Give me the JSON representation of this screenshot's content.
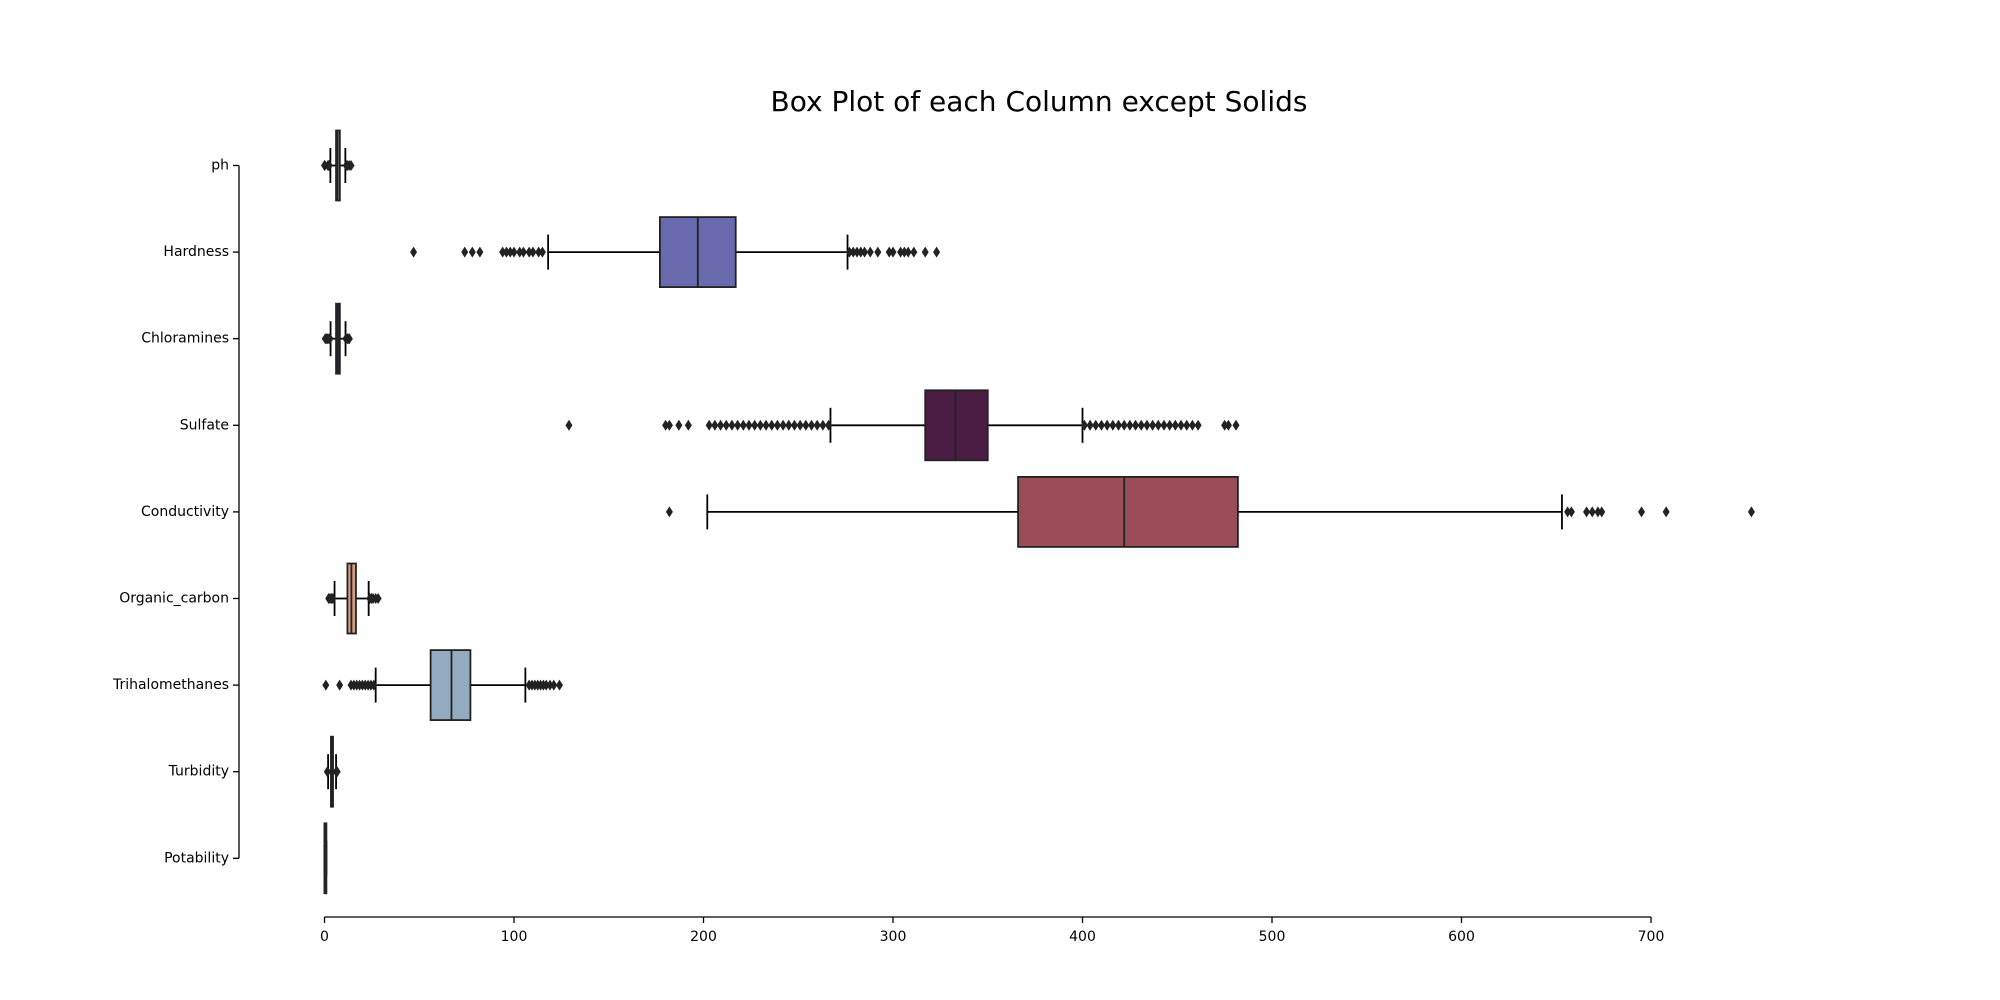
{
  "chart_data": {
    "type": "box",
    "title": "Box Plot of each Column except Solids",
    "xlim": [
      0,
      700
    ],
    "xticks": [
      0,
      100,
      200,
      300,
      400,
      500,
      600,
      700
    ],
    "categories": [
      "ph",
      "Hardness",
      "Chloramines",
      "Sulfate",
      "Conductivity",
      "Organic_carbon",
      "Trihalomethanes",
      "Turbidity",
      "Potability"
    ],
    "boxes": [
      {
        "whisker_low": 3.1,
        "q1": 6.1,
        "median": 7.0,
        "q3": 8.1,
        "whisker_high": 11.0,
        "color": "#d3d5de",
        "outliers": [
          0,
          0.2,
          1.8,
          2.0,
          2.5,
          11.5,
          12,
          13,
          14
        ]
      },
      {
        "whisker_low": 118,
        "q1": 177,
        "median": 197,
        "q3": 217,
        "whisker_high": 276,
        "color": "#6a6baf",
        "outliers": [
          47,
          74,
          78,
          82,
          94,
          96,
          98,
          100,
          103,
          105,
          108,
          110,
          113,
          115,
          277,
          279,
          281,
          283,
          285,
          288,
          292,
          298,
          300,
          304,
          306,
          308,
          311,
          317,
          323
        ]
      },
      {
        "whisker_low": 3.2,
        "q1": 6.1,
        "median": 7.1,
        "q3": 8.1,
        "whisker_high": 11.1,
        "color": "#5c3a8a",
        "outliers": [
          0.4,
          1.0,
          1.7,
          2.4,
          2.9,
          11.3,
          12,
          12.5,
          13.1
        ]
      },
      {
        "whisker_low": 267,
        "q1": 317,
        "median": 333,
        "q3": 350,
        "whisker_high": 400,
        "color": "#4b1c44",
        "outliers": [
          129,
          180,
          182,
          187,
          192,
          203,
          206,
          209,
          212,
          215,
          218,
          221,
          224,
          227,
          230,
          233,
          236,
          239,
          242,
          245,
          248,
          251,
          254,
          257,
          260,
          263,
          266,
          401,
          404,
          407,
          410,
          413,
          416,
          419,
          422,
          425,
          428,
          431,
          434,
          437,
          440,
          443,
          446,
          449,
          452,
          455,
          458,
          461,
          475,
          477,
          481
        ]
      },
      {
        "whisker_low": 202,
        "q1": 366,
        "median": 422,
        "q3": 482,
        "whisker_high": 653,
        "color": "#9b4d57",
        "outliers": [
          182,
          656,
          658,
          666,
          669,
          672,
          674,
          695,
          708,
          753
        ]
      },
      {
        "whisker_low": 5.3,
        "q1": 12.1,
        "median": 14.2,
        "q3": 16.6,
        "whisker_high": 23.3,
        "color": "#d39e84",
        "outliers": [
          2.2,
          2.9,
          3.7,
          4.4,
          23.9,
          24.8,
          25.6,
          27.0,
          28.3
        ]
      },
      {
        "whisker_low": 27,
        "q1": 56,
        "median": 67,
        "q3": 77,
        "whisker_high": 106,
        "color": "#93abc1",
        "outliers": [
          0.7,
          8,
          14,
          15.5,
          17,
          18.5,
          20,
          21.5,
          23,
          24.5,
          26,
          108,
          109.5,
          111,
          112.5,
          114,
          115.5,
          117,
          119,
          121,
          124
        ]
      },
      {
        "whisker_low": 1.9,
        "q1": 3.4,
        "median": 4.0,
        "q3": 4.5,
        "whisker_high": 6.1,
        "color": "#c8d2dc",
        "outliers": [
          1.5,
          1.6,
          6.2,
          6.5,
          6.7
        ]
      },
      {
        "whisker_low": 0,
        "q1": 0,
        "median": 0,
        "q3": 1,
        "whisker_high": 1,
        "color": "#e2d9e2",
        "outliers": []
      }
    ]
  }
}
